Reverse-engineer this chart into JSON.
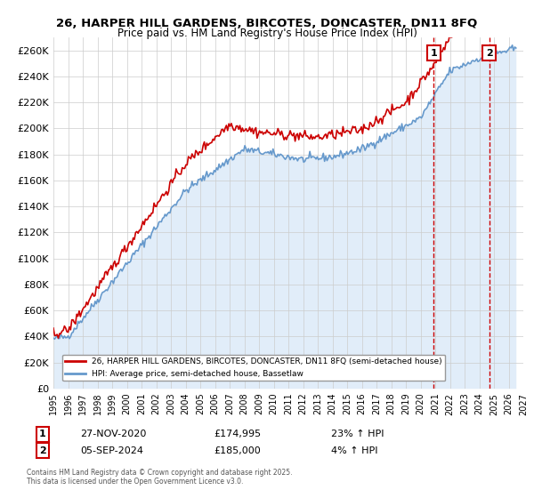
{
  "title": "26, HARPER HILL GARDENS, BIRCOTES, DONCASTER, DN11 8FQ",
  "subtitle": "Price paid vs. HM Land Registry's House Price Index (HPI)",
  "ylabel_ticks": [
    "£0",
    "£20K",
    "£40K",
    "£60K",
    "£80K",
    "£100K",
    "£120K",
    "£140K",
    "£160K",
    "£180K",
    "£200K",
    "£220K",
    "£240K",
    "£260K"
  ],
  "ytick_values": [
    0,
    20000,
    40000,
    60000,
    80000,
    100000,
    120000,
    140000,
    160000,
    180000,
    200000,
    220000,
    240000,
    260000
  ],
  "ylim": [
    0,
    270000
  ],
  "xlim_start": 1995,
  "xlim_end": 2027,
  "xticks": [
    1995,
    1996,
    1997,
    1998,
    1999,
    2000,
    2001,
    2002,
    2003,
    2004,
    2005,
    2006,
    2007,
    2008,
    2009,
    2010,
    2011,
    2012,
    2013,
    2014,
    2015,
    2016,
    2017,
    2018,
    2019,
    2020,
    2021,
    2022,
    2023,
    2024,
    2025,
    2026,
    2027
  ],
  "sale1_x": 2020.9,
  "sale1_y": 174995,
  "sale1_label": "1",
  "sale1_date": "27-NOV-2020",
  "sale1_price": "£174,995",
  "sale1_hpi": "23% ↑ HPI",
  "sale2_x": 2024.67,
  "sale2_y": 185000,
  "sale2_label": "2",
  "sale2_date": "05-SEP-2024",
  "sale2_price": "£185,000",
  "sale2_hpi": "4% ↑ HPI",
  "line_color_red": "#cc0000",
  "line_color_blue": "#6699cc",
  "fill_color_blue": "#aaccee",
  "background_color": "#ffffff",
  "grid_color": "#cccccc",
  "marker_box_color": "#cc0000",
  "legend_label_red": "26, HARPER HILL GARDENS, BIRCOTES, DONCASTER, DN11 8FQ (semi-detached house)",
  "legend_label_blue": "HPI: Average price, semi-detached house, Bassetlaw",
  "footer": "Contains HM Land Registry data © Crown copyright and database right 2025.\nThis data is licensed under the Open Government Licence v3.0."
}
